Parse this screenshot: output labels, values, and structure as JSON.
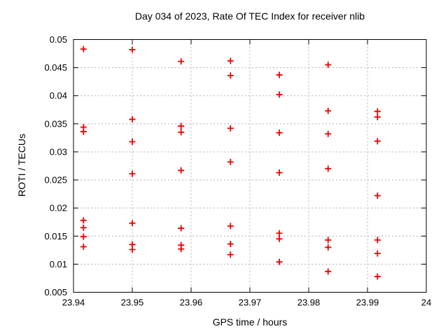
{
  "title": "Day 034 of 2023, Rate Of TEC Index for receiver nlib",
  "axes": {
    "xlabel": "GPS time / hours",
    "ylabel": "ROTI / TECUs"
  },
  "colors": {
    "marker": "#ee0000",
    "grid": "#b0b0b0",
    "axis": "#000000",
    "background": "#ffffff"
  },
  "chart_data": {
    "type": "scatter",
    "title": "Day 034 of 2023, Rate Of TEC Index for receiver nlib",
    "xlabel": "GPS time / hours",
    "ylabel": "ROTI / TECUs",
    "xlim": [
      23.94,
      24
    ],
    "ylim": [
      0.005,
      0.05
    ],
    "xticks": [
      23.94,
      23.95,
      23.96,
      23.97,
      23.98,
      23.99,
      24
    ],
    "xtick_labels": [
      "23.94",
      "23.95",
      "23.96",
      "23.97",
      "23.98",
      "23.99",
      "24"
    ],
    "yticks": [
      0.005,
      0.01,
      0.015,
      0.02,
      0.025,
      0.03,
      0.035,
      0.04,
      0.045,
      0.05
    ],
    "ytick_labels": [
      "0.005",
      "0.01",
      "0.015",
      "0.02",
      "0.025",
      "0.03",
      "0.035",
      "0.04",
      "0.045",
      "0.05"
    ],
    "grid": true,
    "legend": "none",
    "marker": {
      "shape": "plus",
      "color": "#ee0000",
      "size": 9
    },
    "series": [
      {
        "name": "ROTI",
        "points": [
          [
            23.9417,
            0.0483
          ],
          [
            23.9417,
            0.0344
          ],
          [
            23.9417,
            0.0336
          ],
          [
            23.9417,
            0.0178
          ],
          [
            23.9417,
            0.0165
          ],
          [
            23.9417,
            0.0149
          ],
          [
            23.9417,
            0.0131
          ],
          [
            23.95,
            0.0482
          ],
          [
            23.95,
            0.0358
          ],
          [
            23.95,
            0.0318
          ],
          [
            23.95,
            0.0261
          ],
          [
            23.95,
            0.0173
          ],
          [
            23.95,
            0.0135
          ],
          [
            23.95,
            0.0126
          ],
          [
            23.9583,
            0.0461
          ],
          [
            23.9583,
            0.0346
          ],
          [
            23.9583,
            0.0335
          ],
          [
            23.9583,
            0.0267
          ],
          [
            23.9583,
            0.0164
          ],
          [
            23.9583,
            0.0134
          ],
          [
            23.9583,
            0.0127
          ],
          [
            23.9667,
            0.0462
          ],
          [
            23.9667,
            0.0436
          ],
          [
            23.9667,
            0.0342
          ],
          [
            23.9667,
            0.0282
          ],
          [
            23.9667,
            0.0168
          ],
          [
            23.9667,
            0.0136
          ],
          [
            23.9667,
            0.0117
          ],
          [
            23.975,
            0.0437
          ],
          [
            23.975,
            0.0402
          ],
          [
            23.975,
            0.0334
          ],
          [
            23.975,
            0.0263
          ],
          [
            23.975,
            0.0155
          ],
          [
            23.975,
            0.0145
          ],
          [
            23.975,
            0.0104
          ],
          [
            23.9833,
            0.0455
          ],
          [
            23.9833,
            0.0373
          ],
          [
            23.9833,
            0.0332
          ],
          [
            23.9833,
            0.027
          ],
          [
            23.9833,
            0.0143
          ],
          [
            23.9833,
            0.013
          ],
          [
            23.9833,
            0.0087
          ],
          [
            23.9917,
            0.0372
          ],
          [
            23.9917,
            0.0362
          ],
          [
            23.9917,
            0.0319
          ],
          [
            23.9917,
            0.0222
          ],
          [
            23.9917,
            0.0143
          ],
          [
            23.9917,
            0.0119
          ],
          [
            23.9917,
            0.0078
          ]
        ]
      }
    ]
  }
}
